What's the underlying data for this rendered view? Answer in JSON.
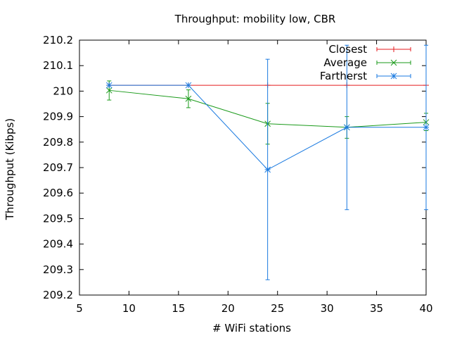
{
  "chart_data": {
    "type": "line",
    "title": "Throughput: mobility low, CBR",
    "xlabel": "# WiFi stations",
    "ylabel": "Throughput (Kibps)",
    "xlim": [
      5,
      40
    ],
    "ylim": [
      209.2,
      210.2
    ],
    "xticks": [
      5,
      10,
      15,
      20,
      25,
      30,
      35,
      40
    ],
    "xtick_labels": [
      "5",
      "10",
      "15",
      "20",
      "25",
      "30",
      "35",
      "40"
    ],
    "yticks": [
      209.2,
      209.3,
      209.4,
      209.5,
      209.6,
      209.7,
      209.8,
      209.9,
      210.0,
      210.1,
      210.2
    ],
    "ytick_labels": [
      "209.2",
      "209.3",
      "209.4",
      "209.5",
      "209.6",
      "209.7",
      "209.8",
      "209.9",
      "210",
      "210.1",
      "210.2"
    ],
    "grid": false,
    "legend_position": "top-right",
    "series": [
      {
        "name": "Closest",
        "color": "#e41a1c",
        "marker": "plus",
        "x": [
          8,
          16,
          24,
          32,
          40
        ],
        "y": [
          210.023,
          210.023,
          210.023,
          210.023,
          210.023
        ],
        "err_low": [
          210.023,
          210.023,
          210.023,
          210.023,
          210.023
        ],
        "err_high": [
          210.023,
          210.023,
          210.023,
          210.023,
          210.023
        ]
      },
      {
        "name": "Average",
        "color": "#1a9a1a",
        "marker": "cross",
        "x": [
          8,
          16,
          24,
          32,
          40
        ],
        "y": [
          210.003,
          209.97,
          209.872,
          209.858,
          209.878
        ],
        "err_low": [
          209.965,
          209.935,
          209.792,
          209.815,
          209.845
        ],
        "err_high": [
          210.04,
          210.005,
          209.952,
          209.9,
          209.913
        ]
      },
      {
        "name": "Fartherst",
        "color": "#1a7ae0",
        "marker": "star",
        "x": [
          8,
          16,
          24,
          32,
          40
        ],
        "y": [
          210.023,
          210.023,
          209.692,
          209.858,
          209.858
        ],
        "err_low": [
          210.023,
          210.023,
          209.26,
          209.535,
          209.535
        ],
        "err_high": [
          210.023,
          210.023,
          210.125,
          210.18,
          210.18
        ]
      }
    ]
  }
}
